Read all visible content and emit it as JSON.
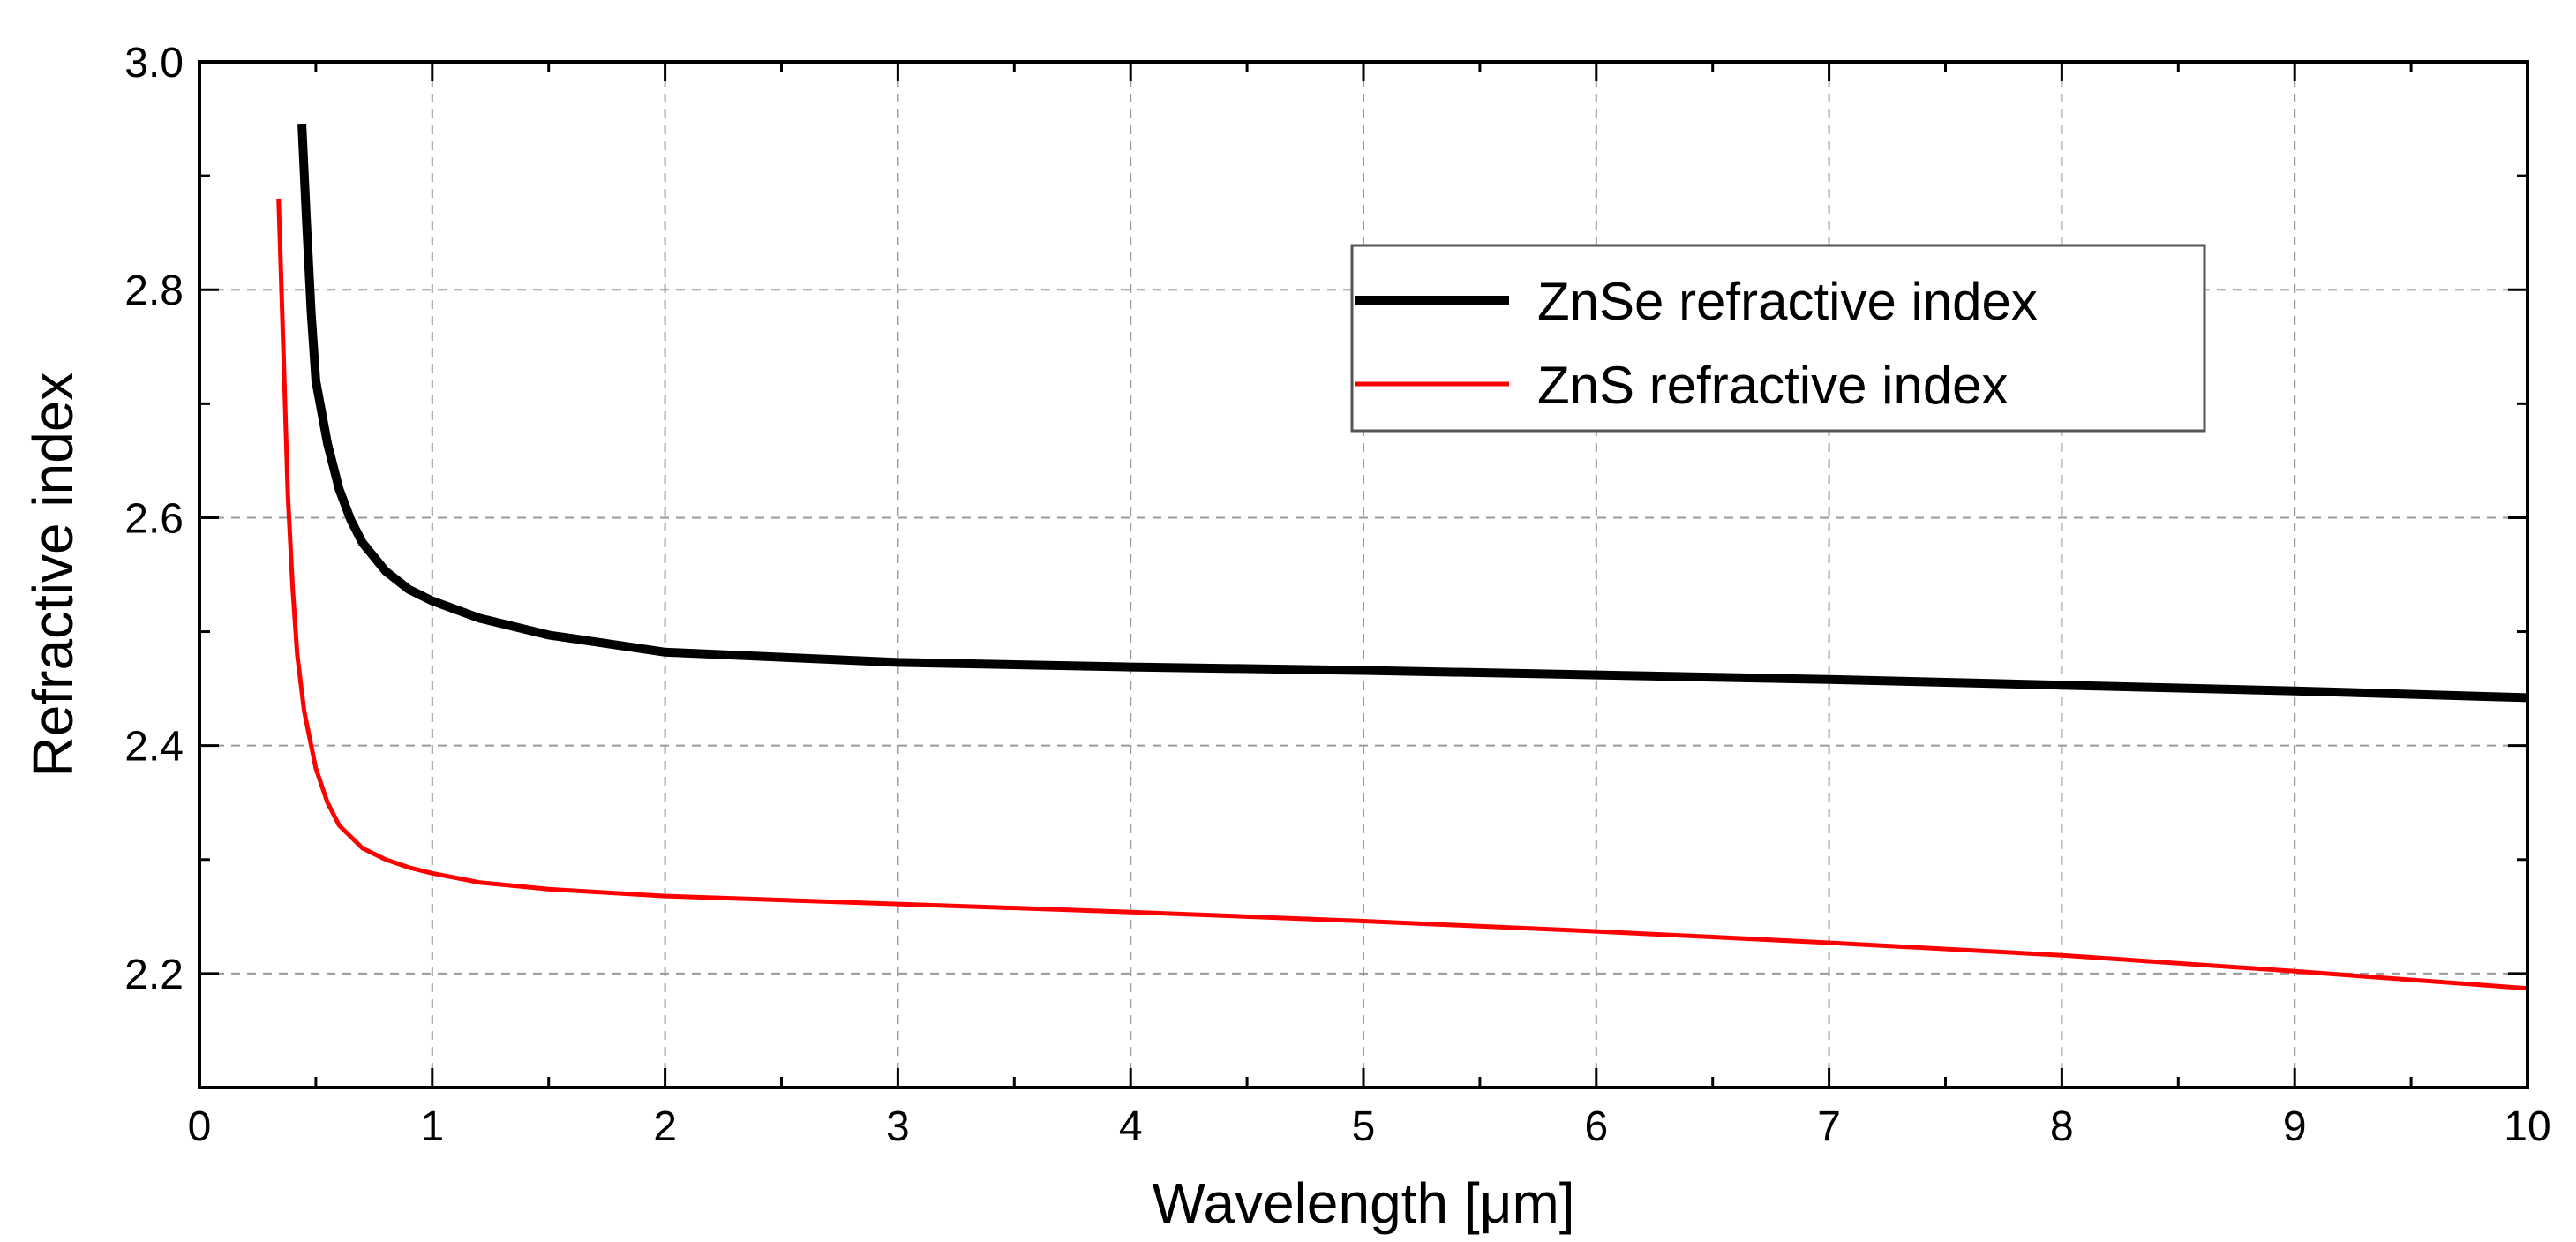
{
  "chart_data": {
    "type": "line",
    "title": "",
    "xlabel": "Wavelength [μm]",
    "ylabel": "Refractive index",
    "xlim": [
      0,
      10
    ],
    "ylim": [
      2.1,
      3.0
    ],
    "grid": true,
    "x_major_ticks": [
      0,
      1,
      2,
      3,
      4,
      5,
      6,
      7,
      8,
      9,
      10
    ],
    "x_tick_labels": [
      "0",
      "1",
      "2",
      "3",
      "4",
      "5",
      "6",
      "7",
      "8",
      "9",
      "10"
    ],
    "y_major_ticks": [
      2.2,
      2.4,
      2.6,
      2.8,
      3.0
    ],
    "y_tick_labels": [
      "2.2",
      "2.4",
      "2.6",
      "2.8",
      "3.0"
    ],
    "legend_position": "top-right",
    "series": [
      {
        "name": "ZnSe refractive index",
        "color": "#000000",
        "x": [
          0.44,
          0.46,
          0.48,
          0.5,
          0.55,
          0.6,
          0.65,
          0.7,
          0.8,
          0.9,
          1.0,
          1.2,
          1.5,
          2.0,
          3.0,
          4.0,
          5.0,
          6.0,
          7.0,
          8.0,
          9.0,
          10.0
        ],
        "y": [
          2.945,
          2.86,
          2.78,
          2.72,
          2.665,
          2.625,
          2.598,
          2.578,
          2.553,
          2.537,
          2.527,
          2.512,
          2.497,
          2.482,
          2.473,
          2.469,
          2.466,
          2.462,
          2.458,
          2.453,
          2.448,
          2.442
        ]
      },
      {
        "name": "ZnS refractive index",
        "color": "#ff0000",
        "x": [
          0.34,
          0.36,
          0.38,
          0.4,
          0.42,
          0.45,
          0.5,
          0.55,
          0.6,
          0.7,
          0.8,
          0.9,
          1.0,
          1.2,
          1.5,
          2.0,
          3.0,
          4.0,
          5.0,
          6.0,
          7.0,
          8.0,
          9.0,
          10.0
        ],
        "y": [
          2.88,
          2.75,
          2.62,
          2.54,
          2.48,
          2.43,
          2.38,
          2.35,
          2.33,
          2.31,
          2.3,
          2.293,
          2.288,
          2.28,
          2.274,
          2.268,
          2.261,
          2.254,
          2.246,
          2.237,
          2.227,
          2.216,
          2.202,
          2.187
        ]
      }
    ]
  }
}
